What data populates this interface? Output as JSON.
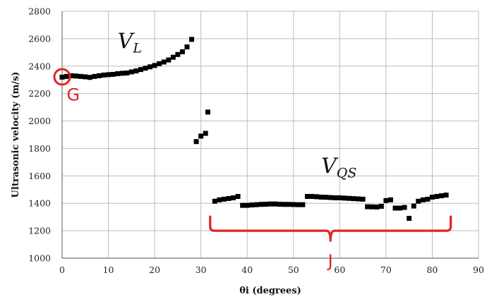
{
  "chart_data": {
    "type": "scatter",
    "xlabel": "θi (degrees)",
    "ylabel": "Ultrasonic velocity (m/s)",
    "xlim": [
      0,
      90
    ],
    "ylim": [
      1000,
      2800
    ],
    "xticks": [
      0,
      10,
      20,
      30,
      40,
      50,
      60,
      70,
      80,
      90
    ],
    "yticks": [
      1000,
      1200,
      1400,
      1600,
      1800,
      2000,
      2200,
      2400,
      2600,
      2800
    ],
    "grid": true,
    "marker_color": "#000000",
    "annotation_color": "#e02424",
    "annotations": {
      "vl": {
        "main": "V",
        "sub": "L",
        "x": 12,
        "y": 2530
      },
      "vqs": {
        "main": "V",
        "sub": "QS",
        "x": 56,
        "y": 1620
      },
      "g": {
        "text": "G",
        "x": 1,
        "y": 2150
      },
      "j": {
        "text": "J",
        "x": 58,
        "y": 1000
      },
      "circle": {
        "x": 0,
        "y": 2322
      },
      "brace": {
        "x1": 32,
        "x2": 84,
        "y_top": 1310,
        "y_bottom": 1200
      }
    },
    "series": [
      {
        "points": [
          [
            0,
            2320
          ],
          [
            1,
            2325
          ],
          [
            2,
            2330
          ],
          [
            3,
            2328
          ],
          [
            4,
            2325
          ],
          [
            5,
            2322
          ],
          [
            6,
            2318
          ],
          [
            7,
            2325
          ],
          [
            8,
            2330
          ],
          [
            9,
            2335
          ],
          [
            10,
            2338
          ],
          [
            11,
            2340
          ],
          [
            12,
            2345
          ],
          [
            13,
            2348
          ],
          [
            14,
            2350
          ],
          [
            15,
            2358
          ],
          [
            16,
            2365
          ],
          [
            17,
            2375
          ],
          [
            18,
            2385
          ],
          [
            19,
            2395
          ],
          [
            20,
            2405
          ],
          [
            21,
            2418
          ],
          [
            22,
            2430
          ],
          [
            23,
            2445
          ],
          [
            24,
            2465
          ],
          [
            25,
            2485
          ],
          [
            26,
            2505
          ],
          [
            27,
            2540
          ],
          [
            28,
            2595
          ],
          [
            29,
            1850
          ],
          [
            30,
            1890
          ],
          [
            31,
            1910
          ],
          [
            31.5,
            2065
          ],
          [
            33,
            1415
          ],
          [
            34,
            1425
          ],
          [
            35,
            1430
          ],
          [
            36,
            1435
          ],
          [
            37,
            1440
          ],
          [
            38,
            1450
          ],
          [
            39,
            1385
          ],
          [
            40,
            1385
          ],
          [
            41,
            1388
          ],
          [
            42,
            1390
          ],
          [
            43,
            1392
          ],
          [
            44,
            1393
          ],
          [
            45,
            1395
          ],
          [
            46,
            1395
          ],
          [
            47,
            1393
          ],
          [
            48,
            1392
          ],
          [
            49,
            1392
          ],
          [
            50,
            1391
          ],
          [
            51,
            1390
          ],
          [
            52,
            1390
          ],
          [
            53,
            1450
          ],
          [
            54,
            1450
          ],
          [
            55,
            1448
          ],
          [
            56,
            1445
          ],
          [
            57,
            1444
          ],
          [
            58,
            1442
          ],
          [
            59,
            1440
          ],
          [
            60,
            1440
          ],
          [
            61,
            1438
          ],
          [
            62,
            1436
          ],
          [
            63,
            1434
          ],
          [
            64,
            1432
          ],
          [
            65,
            1430
          ],
          [
            66,
            1375
          ],
          [
            67,
            1374
          ],
          [
            68,
            1373
          ],
          [
            69,
            1378
          ],
          [
            70,
            1420
          ],
          [
            71,
            1425
          ],
          [
            72,
            1365
          ],
          [
            73,
            1365
          ],
          [
            74,
            1370
          ],
          [
            75,
            1290
          ],
          [
            76,
            1380
          ],
          [
            77,
            1415
          ],
          [
            78,
            1425
          ],
          [
            79,
            1430
          ],
          [
            80,
            1445
          ],
          [
            81,
            1450
          ],
          [
            82,
            1455
          ],
          [
            83,
            1460
          ]
        ]
      }
    ]
  }
}
